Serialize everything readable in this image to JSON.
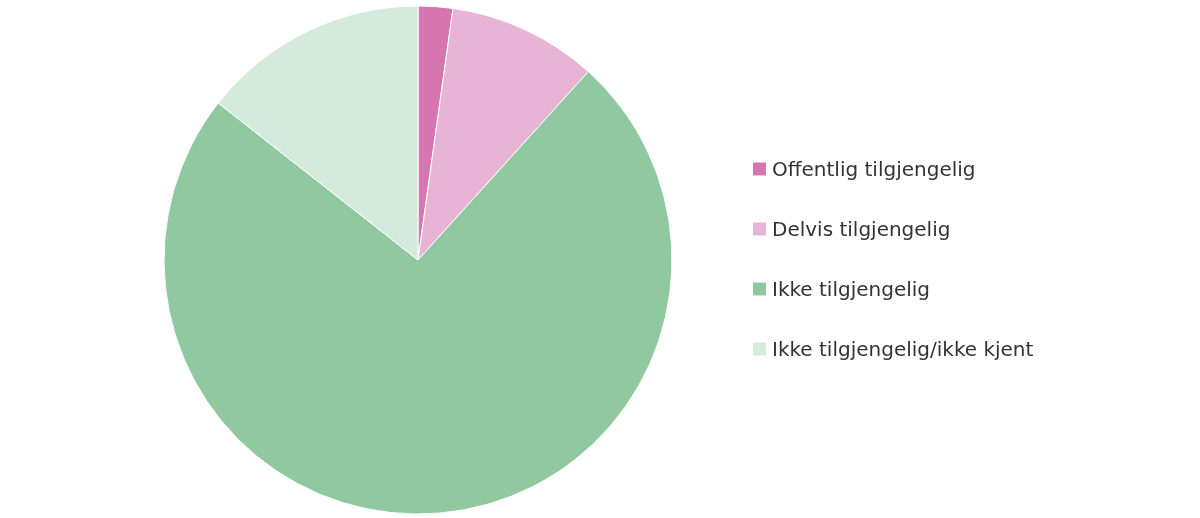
{
  "chart_data": {
    "type": "pie",
    "categories": [
      "Offentlig tilgjengelig",
      "Delvis tilgjengelig",
      "Ikke tilgjengelig",
      "Ikke tilgjengelig/ikke kjent"
    ],
    "values": [
      2.2,
      9.5,
      73.9,
      14.4
    ],
    "colors": [
      "#d576b0",
      "#e8b4d6",
      "#90c8a0",
      "#d4eadb"
    ],
    "legend": "right"
  }
}
